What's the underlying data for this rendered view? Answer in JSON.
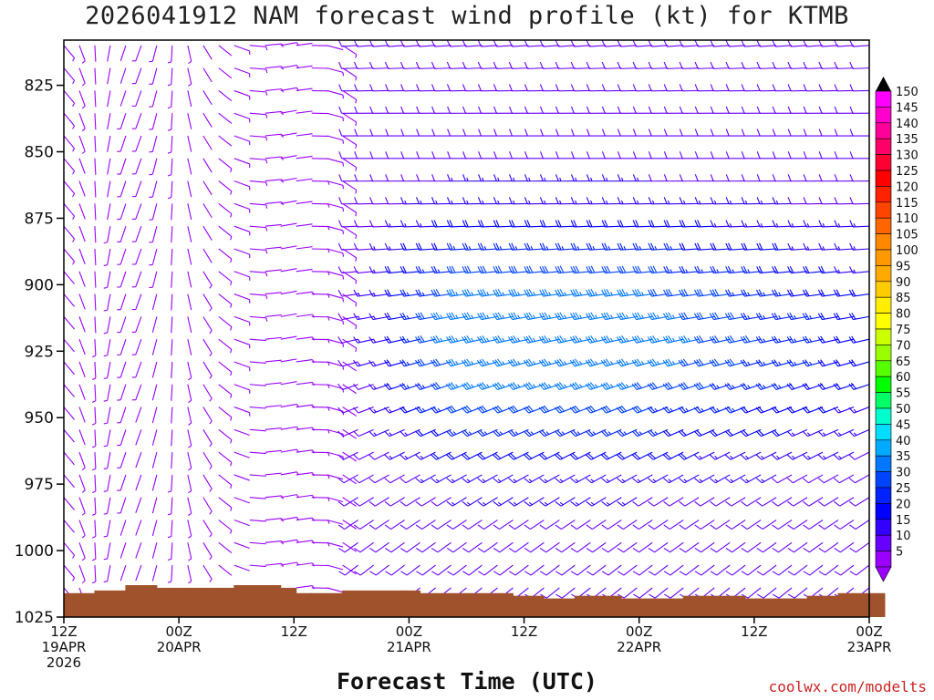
{
  "header": {
    "title": "2026041912 NAM forecast wind profile (kt) for KTMB"
  },
  "footer": {
    "xlabel": "Forecast Time (UTC)",
    "credit": "coolwx.com/modelts"
  },
  "chart_data": {
    "type": "wind-barb-time-height",
    "title": "2026041912 NAM forecast wind profile (kt) for KTMB",
    "xlabel": "Forecast Time (UTC)",
    "ylabel": "",
    "y_axis": {
      "ticks": [
        825,
        850,
        875,
        900,
        925,
        950,
        975,
        1000,
        1025
      ],
      "range_hPa": [
        1025,
        808
      ]
    },
    "x_axis": {
      "ticks": [
        {
          "line1": "12Z",
          "line2": "19APR",
          "line3": "2026"
        },
        {
          "line1": "00Z",
          "line2": "20APR",
          "line3": ""
        },
        {
          "line1": "12Z",
          "line2": "",
          "line3": ""
        },
        {
          "line1": "00Z",
          "line2": "21APR",
          "line3": ""
        },
        {
          "line1": "12Z",
          "line2": "",
          "line3": ""
        },
        {
          "line1": "00Z",
          "line2": "22APR",
          "line3": ""
        },
        {
          "line1": "12Z",
          "line2": "",
          "line3": ""
        },
        {
          "line1": "00Z",
          "line2": "23APR",
          "line3": ""
        }
      ],
      "range_hours": [
        0,
        84
      ]
    },
    "colorbar": {
      "levels": [
        150,
        145,
        140,
        135,
        130,
        125,
        120,
        115,
        110,
        105,
        100,
        95,
        90,
        85,
        80,
        75,
        70,
        65,
        60,
        55,
        50,
        45,
        40,
        35,
        30,
        25,
        20,
        15,
        10,
        5
      ],
      "colors": [
        "#ff00ff",
        "#ff00cc",
        "#ff0099",
        "#ff0066",
        "#ff0033",
        "#ff0000",
        "#ff2200",
        "#ff4400",
        "#ff6600",
        "#ff8800",
        "#ff9900",
        "#ffaa00",
        "#ffcc00",
        "#ffee00",
        "#ffff00",
        "#ccff00",
        "#99ff00",
        "#55ff00",
        "#00ff00",
        "#00ff66",
        "#00ffcc",
        "#00ddff",
        "#00aaff",
        "#0077ff",
        "#0044ff",
        "#0022ff",
        "#0000ff",
        "#3300ff",
        "#6600ff",
        "#9900ff"
      ]
    },
    "terrain_pressure_hPa": [
      1016,
      1016,
      1015,
      1015,
      1013,
      1013,
      1014,
      1014,
      1014,
      1014,
      1014,
      1013,
      1013,
      1013,
      1014,
      1016,
      1016,
      1016,
      1015,
      1015,
      1015,
      1015,
      1015,
      1016,
      1016,
      1016,
      1016,
      1016,
      1016,
      1017,
      1017,
      1018,
      1018,
      1017,
      1017,
      1017,
      1018,
      1018,
      1018,
      1018,
      1017,
      1017,
      1017,
      1017,
      1018,
      1018,
      1018,
      1018,
      1017,
      1017,
      1016,
      1016,
      1016
    ],
    "terrain_color": "#a0522d"
  }
}
